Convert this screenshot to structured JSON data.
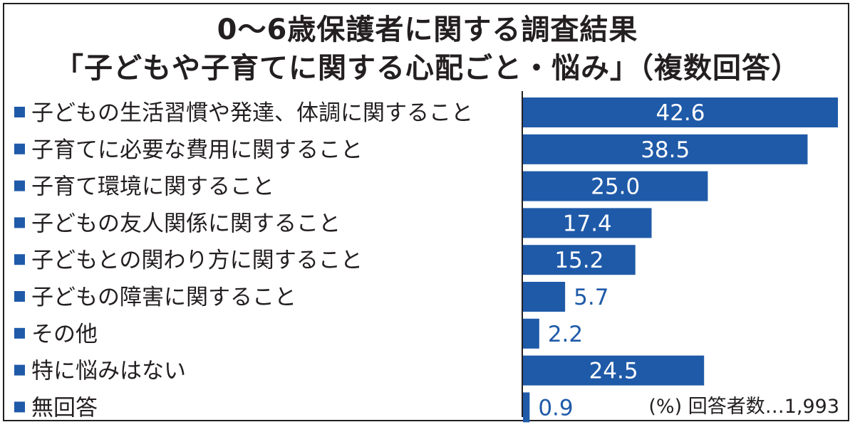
{
  "title_line1": "0〜6歳保護者に関する調査結果",
  "title_line2": "「子どもや子育てに関する心配ごと・悩み」（複数回答）",
  "footnote": "(%)  回答者数…1,993",
  "colors": {
    "bar": "#1f5aa8",
    "text": "#231f20",
    "inside_label": "#ffffff",
    "outside_label": "#1f5aa8"
  },
  "chart_data": {
    "type": "bar",
    "orientation": "horizontal",
    "unit": "%",
    "respondents": "1,993",
    "categories": [
      "子どもの生活習慣や発達、体調に関すること",
      "子育てに必要な費用に関すること",
      "子育て環境に関すること",
      "子どもの友人関係に関すること",
      "子どもとの関わり方に関すること",
      "子どもの障害に関すること",
      "その他",
      "特に悩みはない",
      "無回答"
    ],
    "values": [
      42.6,
      38.5,
      25.0,
      17.4,
      15.2,
      5.7,
      2.2,
      24.5,
      0.9
    ],
    "value_labels": [
      "42.6",
      "38.5",
      "25.0",
      "17.4",
      "15.2",
      "5.7",
      "2.2",
      "24.5",
      "0.9"
    ],
    "legend_marker": "■",
    "xlim": [
      0,
      42.6
    ],
    "grid": false
  }
}
